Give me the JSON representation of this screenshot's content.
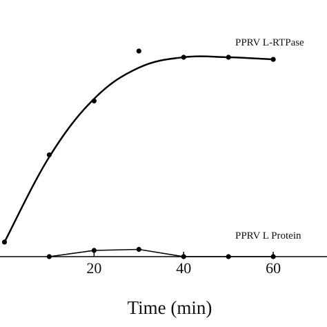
{
  "chart_data": {
    "type": "scatter",
    "xlabel": "Time (min)",
    "xticks": [
      20,
      40,
      60
    ],
    "xlim": [
      -1,
      72
    ],
    "ylim": [
      0,
      100
    ],
    "grid": false,
    "series": [
      {
        "name": "PPRV L-RTPase",
        "points": [
          [
            0,
            7
          ],
          [
            10,
            49
          ],
          [
            20,
            75
          ],
          [
            30,
            99
          ],
          [
            40,
            96
          ],
          [
            50,
            96
          ],
          [
            60,
            95
          ]
        ],
        "fit_curve": true
      },
      {
        "name": "PPRV L Protein",
        "points": [
          [
            10,
            0
          ],
          [
            20,
            3
          ],
          [
            30,
            3.5
          ],
          [
            40,
            0
          ],
          [
            50,
            0
          ],
          [
            60,
            0
          ]
        ],
        "fit_curve": false
      }
    ]
  }
}
